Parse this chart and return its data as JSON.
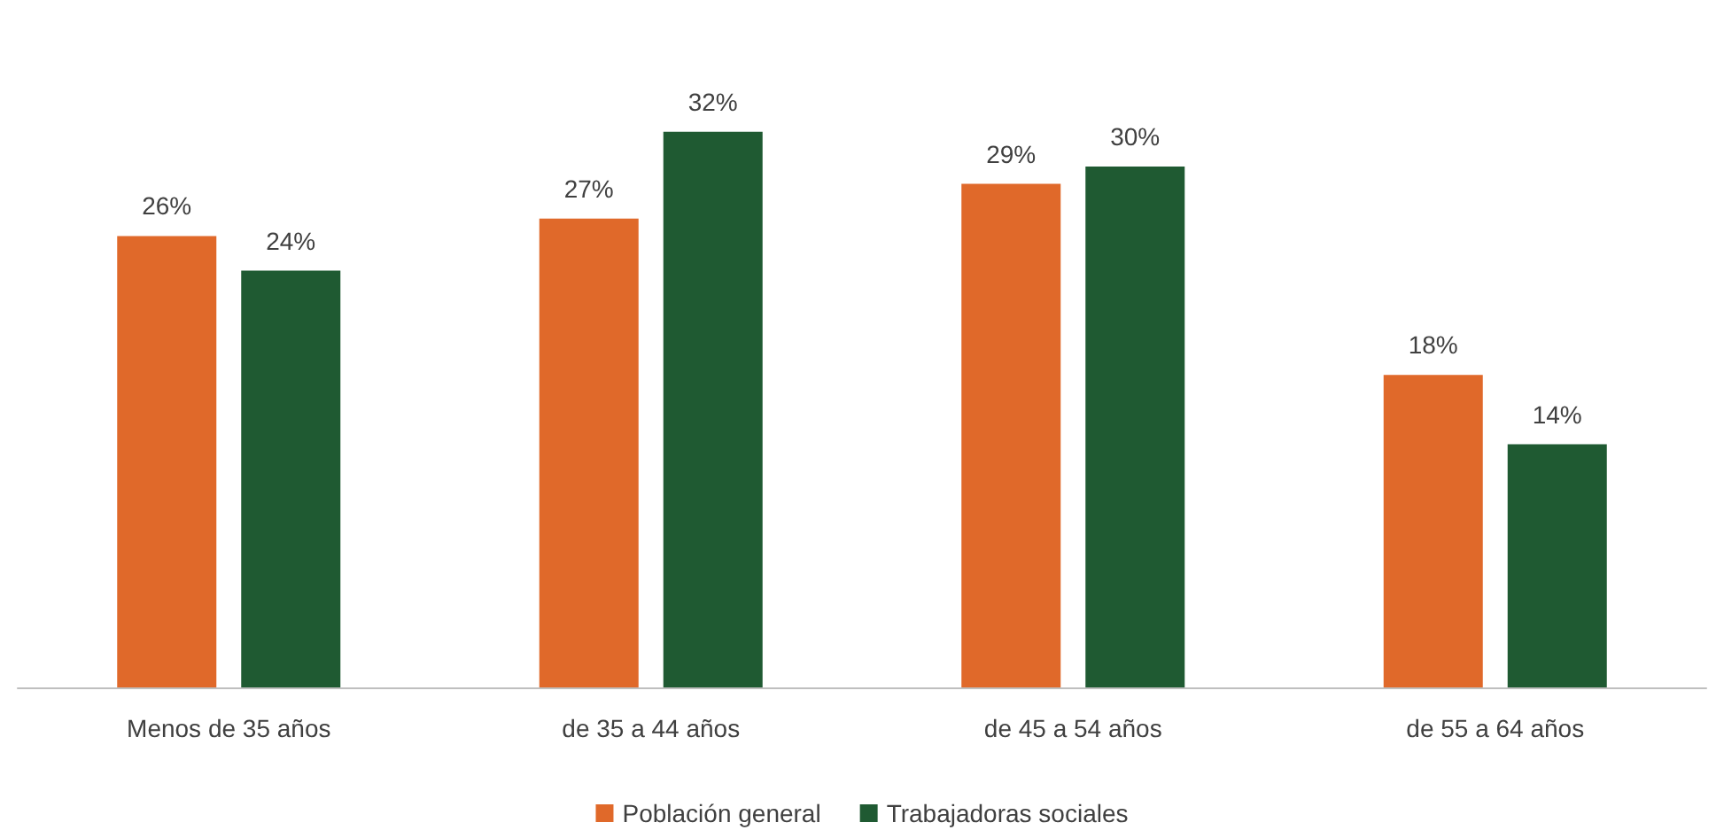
{
  "chart_data": {
    "type": "bar",
    "categories": [
      "Menos de 35 años",
      "de 35 a 44 años",
      "de 45 a 54 años",
      "de 55 a 64 años"
    ],
    "series": [
      {
        "name": "Población general",
        "color": "#e0692a",
        "values": [
          26,
          27,
          29,
          18
        ],
        "value_labels": [
          "26%",
          "27%",
          "29%",
          "18%"
        ]
      },
      {
        "name": "Trabajadoras sociales",
        "color": "#1f5a32",
        "values": [
          24,
          32,
          30,
          14
        ],
        "value_labels": [
          "24%",
          "32%",
          "30%",
          "14%"
        ]
      }
    ],
    "grid": false,
    "legend": "bottom"
  }
}
